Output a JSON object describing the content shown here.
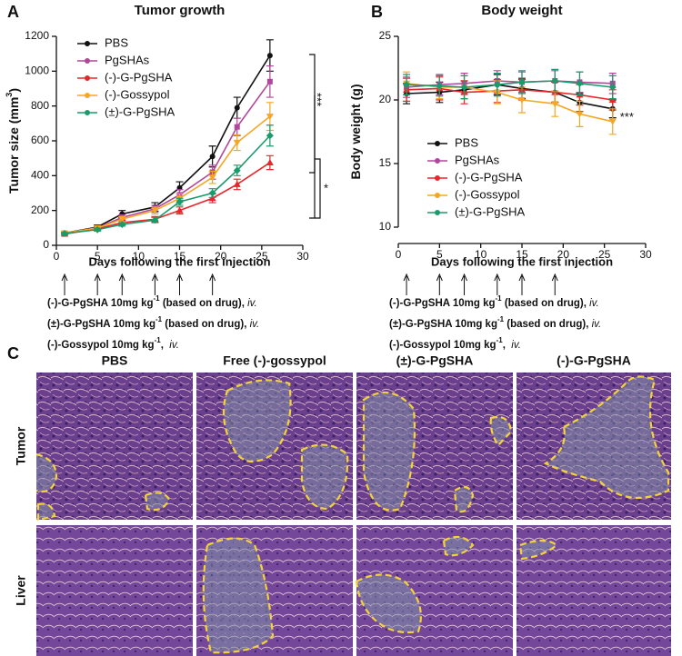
{
  "panel_labels": [
    "A",
    "B",
    "C"
  ],
  "chart_data": [
    {
      "type": "line",
      "title": "Tumor growth",
      "x_label": "Days following the first injection",
      "y_label": "Tumor size (mm",
      "y_label_sup": "3",
      "y_label_end": ")",
      "xlim": [
        0,
        30
      ],
      "xticks": [
        0,
        5,
        10,
        15,
        20,
        25,
        30
      ],
      "ylim": [
        0,
        1200
      ],
      "yticks": [
        0,
        200,
        400,
        600,
        800,
        1000,
        1200
      ],
      "x": [
        1,
        5,
        8,
        12,
        15,
        19,
        22,
        26
      ],
      "injection_days": [
        1,
        5,
        8,
        12,
        15,
        19
      ],
      "series": [
        {
          "name": "PBS",
          "color": "#111111",
          "values": [
            70,
            105,
            180,
            220,
            330,
            510,
            790,
            1090
          ],
          "errors": [
            8,
            12,
            20,
            25,
            35,
            60,
            60,
            90
          ]
        },
        {
          "name": "PgSHAs",
          "color": "#b0479b",
          "values": [
            70,
            100,
            160,
            210,
            290,
            420,
            680,
            940
          ],
          "errors": [
            8,
            10,
            15,
            20,
            30,
            40,
            50,
            90
          ]
        },
        {
          "name": "(-)-G-PgSHA",
          "color": "#e8262b",
          "values": [
            65,
            95,
            130,
            150,
            200,
            270,
            350,
            475
          ],
          "errors": [
            6,
            10,
            12,
            15,
            20,
            25,
            30,
            40
          ]
        },
        {
          "name": "(-)-Gossypol",
          "color": "#f5a623",
          "values": [
            70,
            100,
            150,
            200,
            270,
            390,
            590,
            740
          ],
          "errors": [
            8,
            10,
            15,
            20,
            25,
            35,
            45,
            80
          ]
        },
        {
          "name": "(±)-G-PgSHA",
          "color": "#1a9b6c",
          "values": [
            68,
            90,
            120,
            145,
            250,
            300,
            430,
            630
          ],
          "errors": [
            6,
            8,
            10,
            15,
            20,
            25,
            30,
            60
          ]
        }
      ],
      "annotations": [
        "***",
        "*"
      ]
    },
    {
      "type": "line",
      "title": "Body weight",
      "x_label": "Days following the first injection",
      "y_label": "Body weight (g)",
      "xlim": [
        0,
        30
      ],
      "xticks": [
        0,
        5,
        10,
        15,
        20,
        25,
        30
      ],
      "ylim": [
        10,
        25
      ],
      "yticks": [
        10,
        15,
        20,
        25
      ],
      "x": [
        1,
        5,
        8,
        12,
        15,
        19,
        22,
        26
      ],
      "injection_days": [
        1,
        5,
        8,
        12,
        15,
        19
      ],
      "series": [
        {
          "name": "PBS",
          "color": "#111111",
          "values": [
            20.5,
            20.6,
            20.8,
            21.2,
            20.9,
            20.6,
            19.8,
            19.3
          ],
          "errors": [
            0.8,
            0.8,
            0.7,
            0.8,
            0.8,
            0.8,
            0.7,
            0.7
          ]
        },
        {
          "name": "PgSHAs",
          "color": "#b0479b",
          "values": [
            21.0,
            21.2,
            21.3,
            21.5,
            21.4,
            21.5,
            21.4,
            21.3
          ],
          "errors": [
            0.8,
            0.8,
            0.8,
            0.8,
            0.8,
            0.8,
            0.8,
            0.8
          ]
        },
        {
          "name": "(-)-G-PgSHA",
          "color": "#e8262b",
          "values": [
            20.8,
            20.9,
            20.6,
            20.7,
            20.8,
            20.6,
            20.4,
            20.0
          ],
          "errors": [
            0.9,
            0.9,
            0.9,
            0.9,
            0.8,
            0.8,
            0.8,
            0.8
          ]
        },
        {
          "name": "(-)-Gossypol",
          "color": "#f5a623",
          "values": [
            21.3,
            21.0,
            21.0,
            20.6,
            20.0,
            19.7,
            18.9,
            18.3
          ],
          "errors": [
            0.9,
            0.9,
            0.9,
            0.9,
            1.0,
            1.0,
            1.0,
            1.0
          ]
        },
        {
          "name": "(±)-G-PgSHA",
          "color": "#1a9b6c",
          "values": [
            21.2,
            21.1,
            21.0,
            21.2,
            21.4,
            21.5,
            21.3,
            21.0
          ],
          "errors": [
            0.8,
            0.8,
            0.9,
            0.9,
            0.9,
            0.9,
            0.9,
            0.9
          ]
        }
      ],
      "annotations": [
        "***"
      ]
    }
  ],
  "dosing": [
    {
      "drug": "(-)-G-PgSHA 10mg kg",
      "sup": "-1",
      "note": " (based on drug), ",
      "route": "iv."
    },
    {
      "drug": "(±)-G-PgSHA 10mg kg",
      "sup": "-1",
      "note": " (based on drug), ",
      "route": "iv."
    },
    {
      "drug": "(-)-Gossypol 10mg kg",
      "sup": "-1",
      "note": ",  ",
      "route": "iv."
    }
  ],
  "histology": {
    "columns": [
      "PBS",
      "Free (-)-gossypol",
      "(±)-G-PgSHA",
      "(-)-G-PgSHA"
    ],
    "rows": [
      "Tumor",
      "Liver"
    ]
  }
}
